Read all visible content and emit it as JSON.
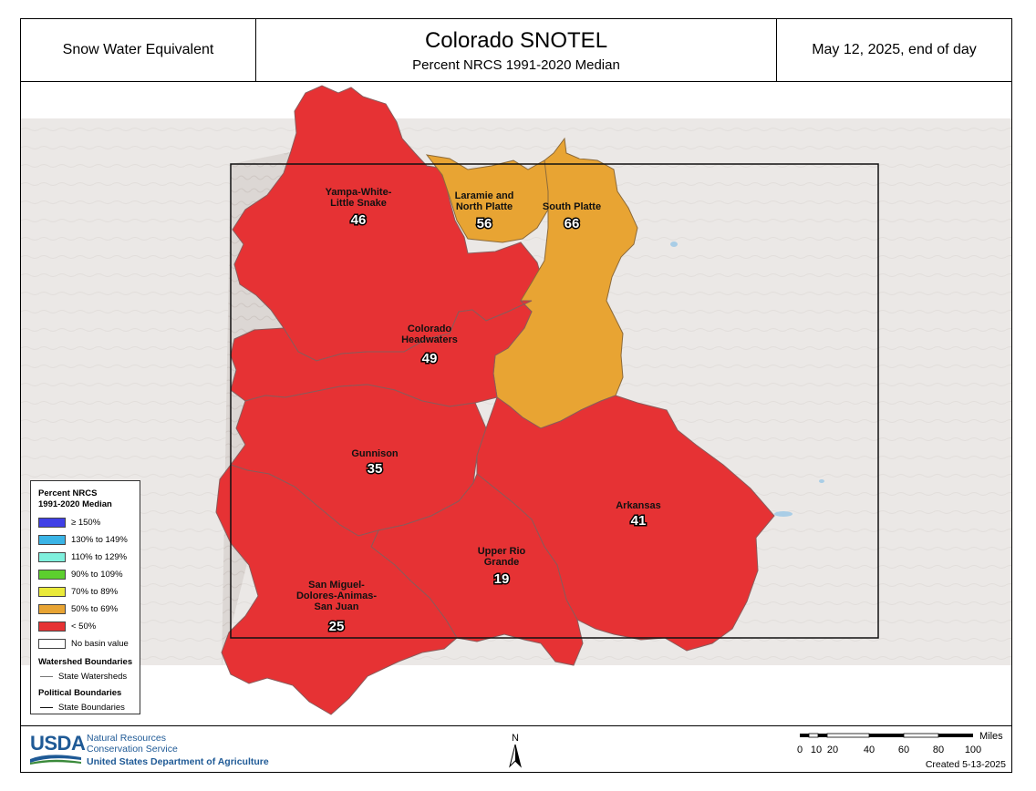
{
  "header": {
    "left": "Snow Water Equivalent",
    "title": "Colorado SNOTEL",
    "subtitle": "Percent NRCS 1991-2020 Median",
    "right": "May 12, 2025, end of day"
  },
  "basins": [
    {
      "id": "yampa",
      "label_lines": [
        "Yampa-White-",
        "Little Snake"
      ],
      "value": "46",
      "color": "#e63234"
    },
    {
      "id": "laramie",
      "label_lines": [
        "Laramie and",
        "North Platte"
      ],
      "value": "56",
      "color": "#e8a433"
    },
    {
      "id": "south-platte",
      "label_lines": [
        "South Platte"
      ],
      "value": "66",
      "color": "#e8a433"
    },
    {
      "id": "colorado-headwaters",
      "label_lines": [
        "Colorado",
        "Headwaters"
      ],
      "value": "49",
      "color": "#e63234"
    },
    {
      "id": "gunnison",
      "label_lines": [
        "Gunnison"
      ],
      "value": "35",
      "color": "#e63234"
    },
    {
      "id": "arkansas",
      "label_lines": [
        "Arkansas"
      ],
      "value": "41",
      "color": "#e63234"
    },
    {
      "id": "upper-rio-grande",
      "label_lines": [
        "Upper Rio",
        "Grande"
      ],
      "value": "19",
      "color": "#e63234"
    },
    {
      "id": "san-miguel",
      "label_lines": [
        "San Miguel-",
        "Dolores-Animas-",
        "San Juan"
      ],
      "value": "25",
      "color": "#e63234"
    }
  ],
  "legend": {
    "title_line1": "Percent NRCS",
    "title_line2": "1991-2020 Median",
    "items": [
      {
        "label": "≥ 150%",
        "color": "#3f3fe6"
      },
      {
        "label": "130% to 149%",
        "color": "#3ab4e6"
      },
      {
        "label": "110% to 129%",
        "color": "#7ff0dd"
      },
      {
        "label": "90% to 109%",
        "color": "#5ccf2e"
      },
      {
        "label": "70% to 89%",
        "color": "#eaea3a"
      },
      {
        "label": "50% to 69%",
        "color": "#e8a433"
      },
      {
        "label": "< 50%",
        "color": "#e63234"
      },
      {
        "label": "No basin value",
        "color": "#ffffff"
      }
    ],
    "watershed_heading": "Watershed Boundaries",
    "watershed_item": "State Watersheds",
    "political_heading": "Political Boundaries",
    "political_item": "State Boundaries"
  },
  "footer": {
    "agency_line1": "Natural Resources",
    "agency_line2": "Conservation Service",
    "department": "United States Department of Agriculture",
    "logo_text": "USDA",
    "north_label": "N",
    "scale_unit": "Miles",
    "scale_ticks": [
      "0",
      "10",
      "20",
      "40",
      "60",
      "80",
      "100"
    ],
    "created": "Created 5-13-2025"
  }
}
